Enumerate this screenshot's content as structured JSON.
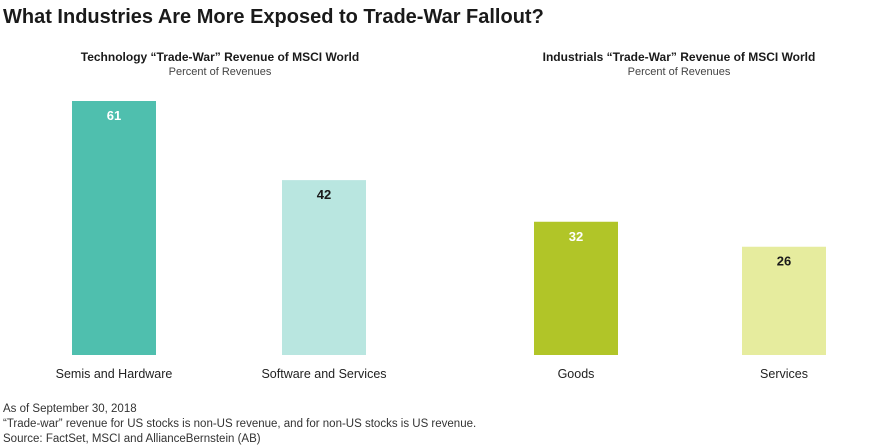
{
  "title": "What Industries Are More Exposed to Trade-War Fallout?",
  "footnotes": [
    "As of September 30, 2018",
    "“Trade-war” revenue for US stocks is non-US revenue, and for non-US stocks is US revenue.",
    "Source: FactSet, MSCI and AllianceBernstein (AB)"
  ],
  "chart_data": [
    {
      "type": "bar",
      "title": "Technology “Trade-War” Revenue of MSCI World",
      "subtitle": "Percent of Revenues",
      "categories": [
        "Semis and Hardware",
        "Software and Services"
      ],
      "values": [
        61,
        42
      ],
      "colors": [
        "#4fbfae",
        "#b9e6e0"
      ],
      "ylim": [
        0,
        61
      ],
      "grid": false,
      "legend": "none"
    },
    {
      "type": "bar",
      "title": "Industrials “Trade-War” Revenue of MSCI World",
      "subtitle": "Percent of Revenues",
      "categories": [
        "Goods",
        "Services"
      ],
      "values": [
        32,
        26
      ],
      "colors": [
        "#b1c528",
        "#e6ec9e"
      ],
      "ylim": [
        0,
        61
      ],
      "grid": false,
      "legend": "none"
    }
  ]
}
